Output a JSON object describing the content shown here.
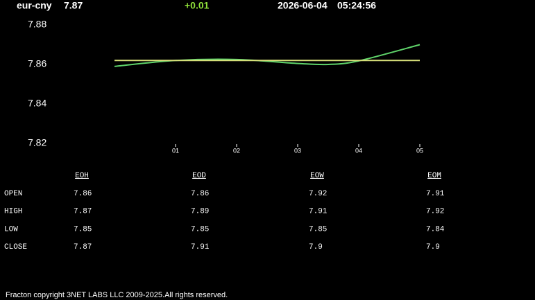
{
  "header": {
    "symbol": "eur-cny",
    "price": "7.87",
    "change": "+0.01",
    "date": "2026-06-04",
    "time": "05:24:56"
  },
  "chart_data": {
    "type": "line",
    "x": [
      0,
      1,
      2,
      3,
      3.5,
      4,
      5
    ],
    "series": [
      {
        "color": "#5fd46a",
        "values": [
          7.859,
          7.862,
          7.8625,
          7.8605,
          7.86,
          7.8618,
          7.87
        ]
      },
      {
        "color": "#d8e07a",
        "values": [
          7.862,
          7.862,
          7.862,
          7.862,
          7.862,
          7.862,
          7.862
        ]
      }
    ],
    "xlim": [
      0,
      5
    ],
    "xticks": [
      {
        "value": 1,
        "label": "01"
      },
      {
        "value": 2,
        "label": "02"
      },
      {
        "value": 3,
        "label": "03"
      },
      {
        "value": 4,
        "label": "04"
      },
      {
        "value": 5,
        "label": "05"
      }
    ],
    "ylim": [
      7.82,
      7.88
    ],
    "yticks": [
      7.82,
      7.84,
      7.86,
      7.88
    ],
    "grid": false
  },
  "table": {
    "columns": [
      "EOH",
      "EOD",
      "EOW",
      "EOM"
    ],
    "rows": [
      [
        "OPEN",
        "7.86",
        "7.86",
        "7.92",
        "7.91"
      ],
      [
        "HIGH",
        "7.87",
        "7.89",
        "7.91",
        "7.92"
      ],
      [
        "LOW",
        "7.85",
        "7.85",
        "7.85",
        "7.84"
      ],
      [
        "CLOSE",
        "7.87",
        "7.91",
        "7.9",
        "7.9"
      ]
    ]
  },
  "footer": "Fracton copyright 3NET LABS LLC 2009-2025.All rights reserved."
}
